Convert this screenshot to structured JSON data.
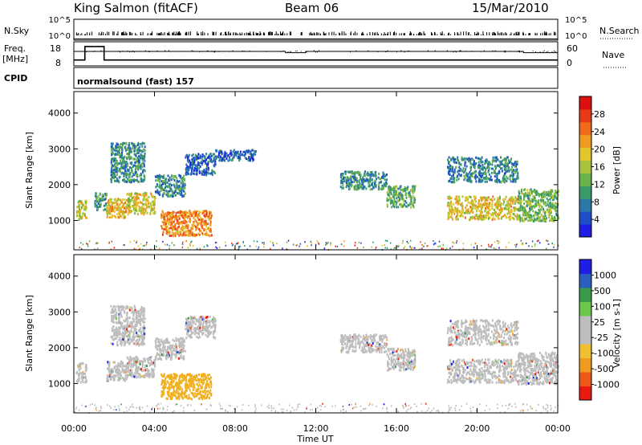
{
  "header": {
    "station": "King Salmon (fitACF)",
    "beam": "Beam 06",
    "date": "15/Mar/2010"
  },
  "side_labels": {
    "nsky": "N.Sky",
    "freq": "Freq.",
    "freq_unit": "[MHz]",
    "cpid": "CPID",
    "nsearch": "N.Search",
    "nave": "Nave"
  },
  "cpid_text": "normalsound (fast) 157",
  "colors": {
    "power_scale": [
      "#1e1ee6",
      "#1f4fc8",
      "#2a78a8",
      "#3a9a6a",
      "#6ab24a",
      "#a8c43a",
      "#e0c82a",
      "#f09a20",
      "#f06a18",
      "#e83a14",
      "#dd1010"
    ],
    "velocity_scale": [
      "#1e1ee6",
      "#2a5ec0",
      "#3a9a4a",
      "#6ac84a",
      "#bdbdbd",
      "#bdbdbd",
      "#f0c030",
      "#f09a20",
      "#f05818",
      "#e81a12"
    ],
    "ground_scatter": "#bdbdbd"
  },
  "chart_data": [
    {
      "type": "line",
      "name": "nsky-nsearch",
      "ylabel": "N.Sky",
      "y2label": "N.Search",
      "yticks": [
        "10^5",
        "10^0"
      ],
      "y2ticks": [
        "10^5",
        "10^0"
      ],
      "xlim": [
        0,
        24
      ],
      "series": [
        {
          "x": [
            0,
            24
          ],
          "values": [
            0.3,
            0.3
          ]
        }
      ]
    },
    {
      "type": "line",
      "name": "freq-nave",
      "ylabel": "Freq. [MHz]",
      "y2label": "Nave",
      "yticks": [
        18,
        8
      ],
      "y2ticks": [
        60,
        0
      ],
      "ylim": [
        8,
        18
      ],
      "y2lim": [
        0,
        60
      ],
      "xlim": [
        0,
        24
      ],
      "series": [
        {
          "x": [
            0,
            0.55,
            0.55,
            1.5,
            1.5,
            24
          ],
          "values": [
            10.2,
            10.2,
            17.2,
            17.2,
            10.2,
            10.2
          ]
        },
        {
          "x": [
            0,
            10.5,
            10.5,
            11.5,
            11.5,
            22.3,
            22.3,
            24
          ],
          "values": [
            40,
            40,
            36,
            36,
            40,
            40,
            36,
            36
          ]
        }
      ]
    },
    {
      "type": "heatmap",
      "name": "power",
      "ylabel": "Slant Range [km]",
      "yticks": [
        1000,
        2000,
        3000,
        4000
      ],
      "ylim": [
        180,
        4600
      ],
      "xlim": [
        0,
        24
      ],
      "colorbar_label": "Power [dB]",
      "colorbar_ticks": [
        4,
        8,
        12,
        16,
        20,
        24,
        28
      ],
      "colorbar_range": [
        0,
        32
      ],
      "regions": [
        {
          "x": [
            0.1,
            0.6
          ],
          "y": [
            1050,
            1600
          ],
          "value": 17
        },
        {
          "x": [
            1.0,
            1.6
          ],
          "y": [
            1300,
            1800
          ],
          "value": 10
        },
        {
          "x": [
            1.6,
            2.6
          ],
          "y": [
            1100,
            1650
          ],
          "value": 20
        },
        {
          "x": [
            2.6,
            4.0
          ],
          "y": [
            1200,
            1800
          ],
          "value": 18
        },
        {
          "x": [
            4.0,
            5.5
          ],
          "y": [
            1700,
            2300
          ],
          "value": 9
        },
        {
          "x": [
            5.5,
            7.0
          ],
          "y": [
            2300,
            2900
          ],
          "value": 6
        },
        {
          "x": [
            4.3,
            6.8
          ],
          "y": [
            600,
            1300
          ],
          "value": 23
        },
        {
          "x": [
            1.8,
            3.5
          ],
          "y": [
            2100,
            3200
          ],
          "value": 9
        },
        {
          "x": [
            7.0,
            9.0
          ],
          "y": [
            2700,
            3000
          ],
          "value": 5
        },
        {
          "x": [
            13.2,
            15.5
          ],
          "y": [
            1900,
            2400
          ],
          "value": 9
        },
        {
          "x": [
            15.5,
            16.9
          ],
          "y": [
            1400,
            2000
          ],
          "value": 12
        },
        {
          "x": [
            18.5,
            22.0
          ],
          "y": [
            1050,
            1700
          ],
          "value": 19
        },
        {
          "x": [
            18.5,
            22.0
          ],
          "y": [
            2100,
            2800
          ],
          "value": 8
        },
        {
          "x": [
            22.0,
            24.0
          ],
          "y": [
            1000,
            1900
          ],
          "value": 13
        }
      ]
    },
    {
      "type": "heatmap",
      "name": "velocity",
      "ylabel": "Slant Range [km]",
      "yticks": [
        1000,
        2000,
        3000,
        4000
      ],
      "ylim": [
        180,
        4600
      ],
      "xlim": [
        0,
        24
      ],
      "xticks": [
        "00:00",
        "04:00",
        "08:00",
        "12:00",
        "16:00",
        "20:00",
        "00:00"
      ],
      "xlabel": "Time UT",
      "colorbar_label": "Velocity [m s-1]",
      "colorbar_ticks": [
        1000,
        500,
        100,
        25,
        -25,
        -100,
        -500,
        -1000
      ],
      "regions": [
        {
          "x": [
            0.1,
            0.6
          ],
          "y": [
            1050,
            1600
          ],
          "value": 0
        },
        {
          "x": [
            1.6,
            2.6
          ],
          "y": [
            1100,
            1650
          ],
          "value": 0
        },
        {
          "x": [
            2.6,
            4.0
          ],
          "y": [
            1200,
            1800
          ],
          "value": 0
        },
        {
          "x": [
            4.0,
            5.5
          ],
          "y": [
            1700,
            2300
          ],
          "value": 0
        },
        {
          "x": [
            5.5,
            7.0
          ],
          "y": [
            2300,
            2900
          ],
          "value": 0
        },
        {
          "x": [
            4.3,
            6.8
          ],
          "y": [
            600,
            1300
          ],
          "value": -60
        },
        {
          "x": [
            1.8,
            3.5
          ],
          "y": [
            2100,
            3200
          ],
          "value": 0
        },
        {
          "x": [
            13.2,
            15.5
          ],
          "y": [
            1900,
            2400
          ],
          "value": 0
        },
        {
          "x": [
            15.5,
            16.9
          ],
          "y": [
            1400,
            2000
          ],
          "value": 0
        },
        {
          "x": [
            18.5,
            22.0
          ],
          "y": [
            1050,
            1700
          ],
          "value": 0
        },
        {
          "x": [
            18.5,
            22.0
          ],
          "y": [
            2100,
            2800
          ],
          "value": 0
        },
        {
          "x": [
            22.0,
            24.0
          ],
          "y": [
            1000,
            1900
          ],
          "value": 0
        }
      ]
    }
  ]
}
